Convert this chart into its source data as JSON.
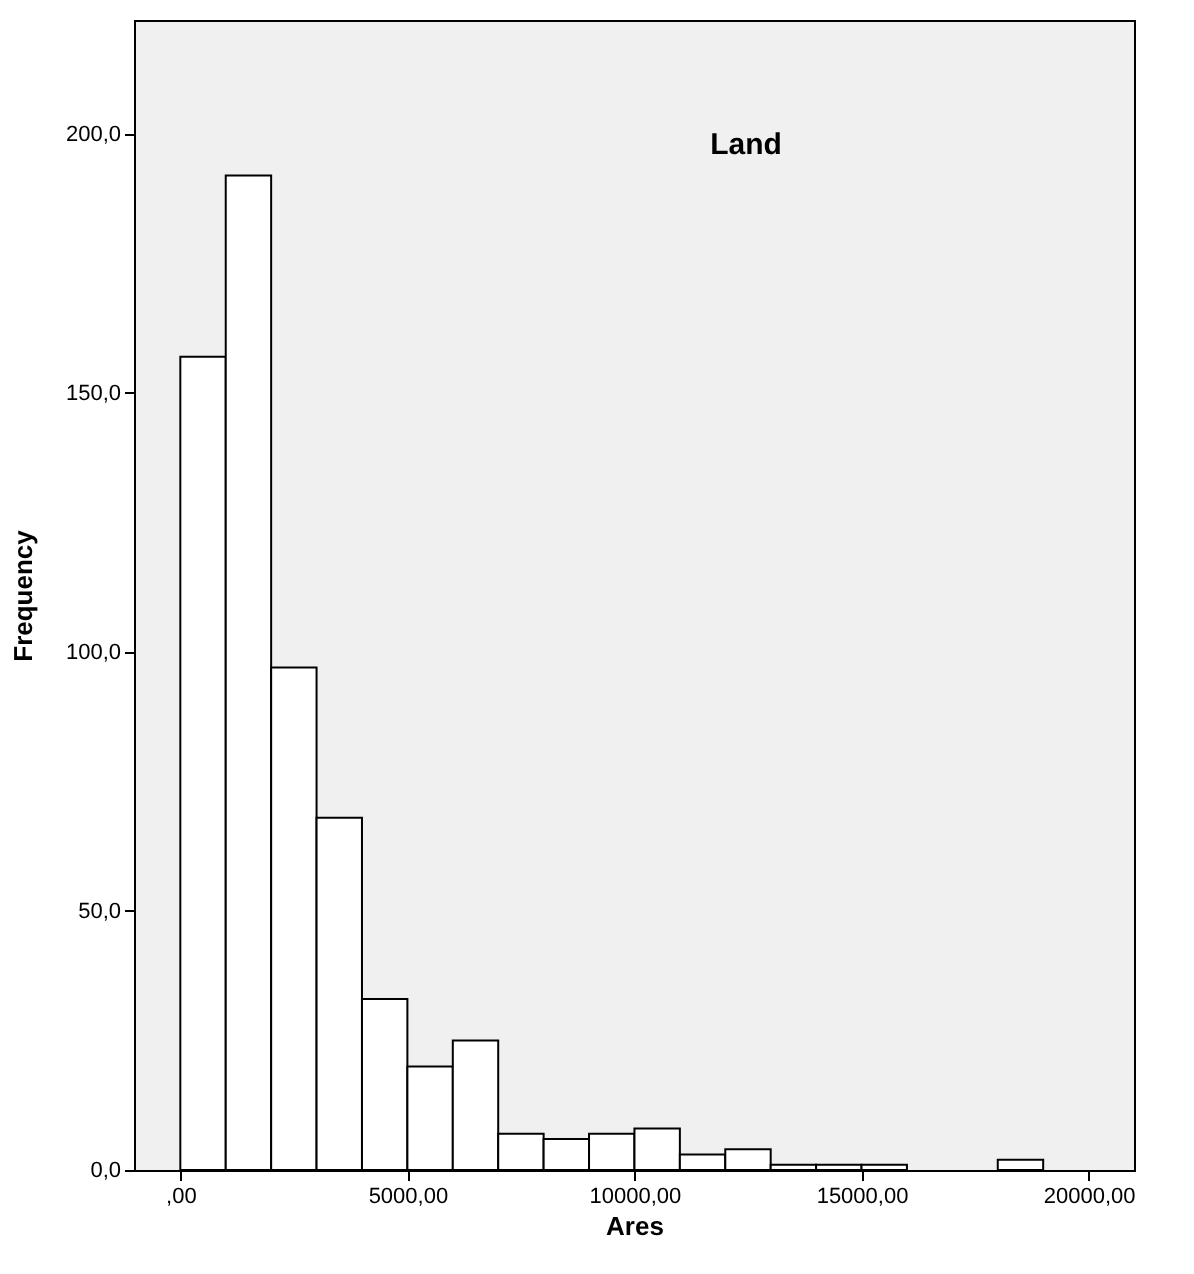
{
  "chart_data": {
    "type": "histogram",
    "title": "Land",
    "xlabel": "Ares",
    "ylabel": "Frequency",
    "color": "#ffffff",
    "bins": [
      0,
      1000,
      2000,
      3000,
      4000,
      5000,
      6000,
      7000,
      8000,
      9000,
      10000,
      11000,
      12000,
      13000,
      14000,
      15000,
      16000,
      17000,
      18000,
      19000
    ],
    "values": [
      157,
      192,
      97,
      68,
      33,
      20,
      25,
      7,
      6,
      7,
      8,
      3,
      4,
      1,
      1,
      1,
      0,
      0,
      2
    ],
    "xlim": [
      -1020,
      21000
    ],
    "ylim": [
      0,
      222
    ],
    "xticks": [
      {
        "value": 0,
        "label": ",00"
      },
      {
        "value": 5000,
        "label": "5000,00"
      },
      {
        "value": 10000,
        "label": "10000,00"
      },
      {
        "value": 15000,
        "label": "15000,00"
      },
      {
        "value": 20000,
        "label": "20000,00"
      }
    ],
    "yticks": [
      {
        "value": 0,
        "label": "0,0"
      },
      {
        "value": 50,
        "label": "50,0"
      },
      {
        "value": 100,
        "label": "100,0"
      },
      {
        "value": 150,
        "label": "150,0"
      },
      {
        "value": 200,
        "label": "200,0"
      }
    ]
  }
}
